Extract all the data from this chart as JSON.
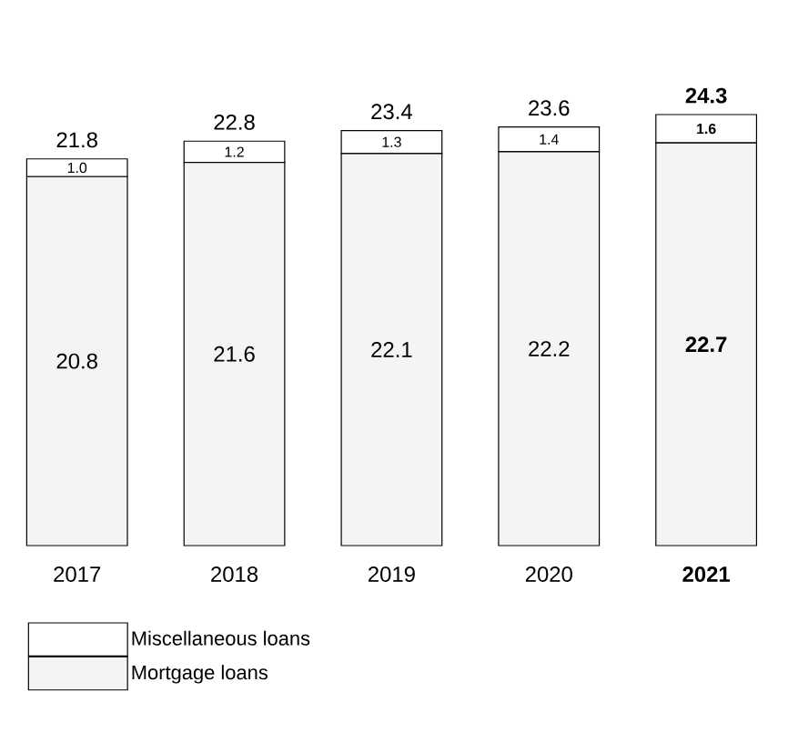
{
  "chart_data": {
    "type": "bar",
    "stacked": true,
    "categories": [
      "2017",
      "2018",
      "2019",
      "2020",
      "2021"
    ],
    "series": [
      {
        "name": "Mortgage loans",
        "color": "#f4f4f4",
        "values": [
          20.8,
          21.6,
          22.1,
          22.2,
          22.7
        ],
        "value_labels": [
          "20.8",
          "21.6",
          "22.1",
          "22.2",
          "22.7"
        ]
      },
      {
        "name": "Miscellaneous loans",
        "color": "#ffffff",
        "values": [
          1.0,
          1.2,
          1.3,
          1.4,
          1.6
        ],
        "value_labels": [
          "1.0",
          "1.2",
          "1.3",
          "1.4",
          "1.6"
        ]
      }
    ],
    "totals": [
      "21.8",
      "22.8",
      "23.4",
      "23.6",
      "24.3"
    ],
    "legend": "bottom left"
  }
}
